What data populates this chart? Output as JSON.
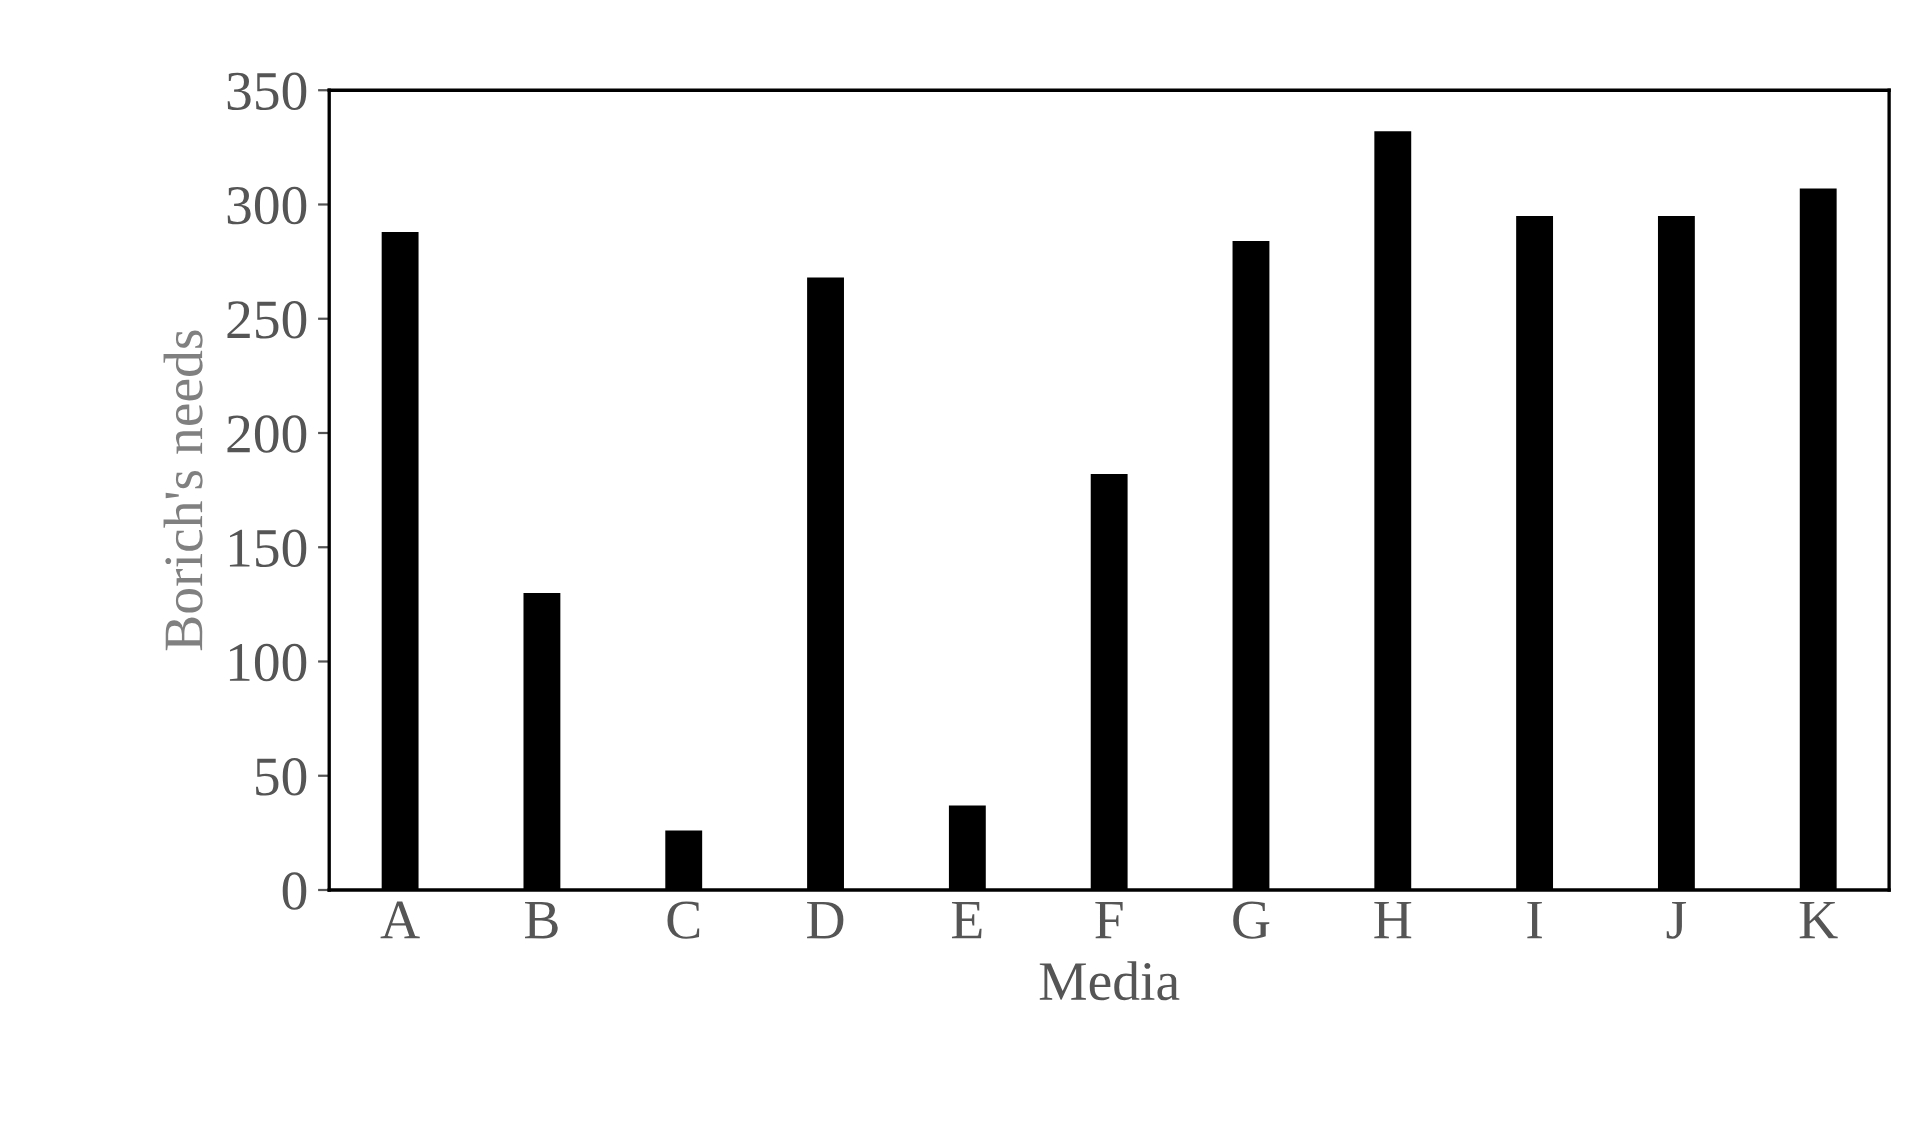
{
  "chart_data": {
    "type": "bar",
    "xlabel": "Media",
    "ylabel": "Borich's needs",
    "categories": [
      "A",
      "B",
      "C",
      "D",
      "E",
      "F",
      "G",
      "H",
      "I",
      "J",
      "K"
    ],
    "values": [
      288,
      130,
      26,
      268,
      37,
      182,
      284,
      332,
      295,
      295,
      307
    ],
    "color": "#000000",
    "ylim": [
      0,
      350
    ],
    "yticks": [
      0,
      50,
      100,
      150,
      200,
      250,
      300,
      350
    ],
    "grid": false,
    "legend": false
  }
}
